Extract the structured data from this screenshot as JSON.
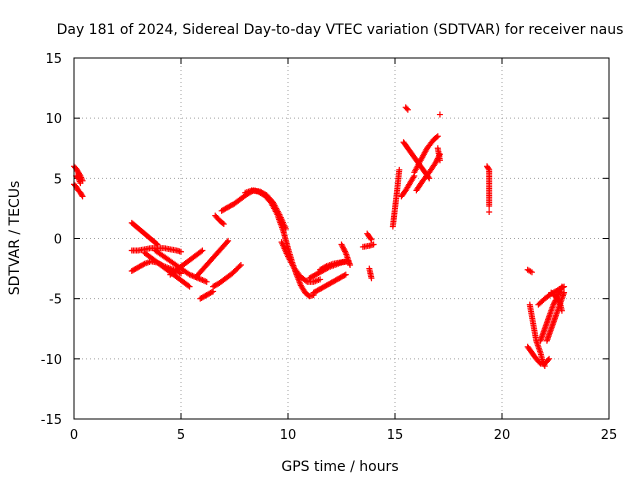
{
  "chart_data": {
    "type": "scatter",
    "title": "Day 181 of 2024, Sidereal Day-to-day VTEC variation (SDTVAR) for receiver naus",
    "xlabel": "GPS time / hours",
    "ylabel": "SDTVAR / TECUs",
    "xlim": [
      0,
      25
    ],
    "ylim": [
      -15,
      15
    ],
    "xticks": [
      0,
      5,
      10,
      15,
      20,
      25
    ],
    "yticks": [
      -15,
      -10,
      -5,
      0,
      5,
      10,
      15
    ],
    "grid": true,
    "marker": "+",
    "color": "#ff0000",
    "segments": [
      {
        "x": [
          0.0,
          0.1,
          0.2,
          0.3,
          0.4
        ],
        "y": [
          6.0,
          5.8,
          5.5,
          5.2,
          4.8
        ]
      },
      {
        "x": [
          0.0,
          0.1,
          0.2,
          0.3,
          0.4
        ],
        "y": [
          4.5,
          4.3,
          4.0,
          3.8,
          3.5
        ]
      },
      {
        "x": [
          0.1,
          0.2,
          0.3
        ],
        "y": [
          5.2,
          5.0,
          4.6
        ]
      },
      {
        "x": [
          2.7,
          2.9,
          3.1,
          3.3,
          3.5,
          3.7,
          3.9
        ],
        "y": [
          1.3,
          1.0,
          0.7,
          0.4,
          0.1,
          -0.2,
          -0.5
        ]
      },
      {
        "x": [
          2.7,
          3.0,
          3.3,
          3.6,
          3.9,
          4.2,
          4.5,
          4.8,
          5.0
        ],
        "y": [
          -1.0,
          -1.0,
          -0.9,
          -0.8,
          -0.8,
          -0.8,
          -0.9,
          -1.0,
          -1.1
        ]
      },
      {
        "x": [
          2.7,
          3.0,
          3.3,
          3.6,
          3.9,
          4.2,
          4.5,
          4.8,
          5.0
        ],
        "y": [
          -2.7,
          -2.4,
          -2.1,
          -1.9,
          -2.0,
          -2.3,
          -2.5,
          -2.7,
          -2.9
        ]
      },
      {
        "x": [
          3.3,
          3.6,
          3.9,
          4.2,
          4.5,
          4.8,
          5.1,
          5.4
        ],
        "y": [
          -1.2,
          -1.6,
          -2.0,
          -2.4,
          -2.8,
          -3.2,
          -3.6,
          -4.0
        ]
      },
      {
        "x": [
          3.8,
          4.2,
          4.6,
          5.0,
          5.4,
          5.8,
          6.2
        ],
        "y": [
          -1.0,
          -1.5,
          -2.0,
          -2.5,
          -3.0,
          -3.3,
          -3.6
        ]
      },
      {
        "x": [
          4.5,
          4.8,
          5.1,
          5.4,
          5.7,
          6.0
        ],
        "y": [
          -3.0,
          -2.6,
          -2.2,
          -1.8,
          -1.4,
          -1.0
        ]
      },
      {
        "x": [
          5.7,
          6.0,
          6.3,
          6.6,
          6.9,
          7.2
        ],
        "y": [
          -3.2,
          -2.6,
          -2.0,
          -1.4,
          -0.8,
          -0.2
        ]
      },
      {
        "x": [
          5.9,
          6.2,
          6.5
        ],
        "y": [
          -5.0,
          -4.7,
          -4.4
        ]
      },
      {
        "x": [
          6.5,
          6.8,
          7.1,
          7.4,
          7.8
        ],
        "y": [
          -4.0,
          -3.7,
          -3.3,
          -2.9,
          -2.2
        ]
      },
      {
        "x": [
          6.9,
          7.2,
          7.5,
          7.8,
          8.1,
          8.4,
          8.7,
          9.0,
          9.3,
          9.6,
          9.9
        ],
        "y": [
          2.3,
          2.6,
          2.9,
          3.3,
          3.7,
          4.0,
          3.9,
          3.6,
          3.0,
          2.0,
          0.8
        ]
      },
      {
        "x": [
          6.6,
          6.8,
          7.0
        ],
        "y": [
          1.9,
          1.5,
          1.2
        ]
      },
      {
        "x": [
          8.0,
          8.3,
          8.6,
          8.9,
          9.2,
          9.5,
          9.8,
          10.0,
          10.2,
          10.4,
          10.6,
          10.8,
          11.0,
          11.2
        ],
        "y": [
          3.8,
          4.0,
          3.9,
          3.6,
          3.0,
          2.0,
          0.5,
          -0.8,
          -2.0,
          -3.0,
          -3.9,
          -4.5,
          -4.8,
          -4.7
        ]
      },
      {
        "x": [
          9.7,
          10.0,
          10.3,
          10.6,
          10.9,
          11.2,
          11.5
        ],
        "y": [
          -0.3,
          -1.5,
          -2.5,
          -3.2,
          -3.6,
          -3.6,
          -3.4
        ]
      },
      {
        "x": [
          11.0,
          11.3,
          11.6,
          11.9,
          12.2,
          12.5,
          12.8
        ],
        "y": [
          -3.3,
          -3.0,
          -2.7,
          -2.4,
          -2.2,
          -2.0,
          -1.9
        ]
      },
      {
        "x": [
          11.2,
          11.5,
          11.8,
          12.1,
          12.4,
          12.7
        ],
        "y": [
          -4.5,
          -4.2,
          -3.9,
          -3.6,
          -3.3,
          -3.0
        ]
      },
      {
        "x": [
          11.5,
          11.8,
          12.1,
          12.4,
          12.7
        ],
        "y": [
          -2.6,
          -2.3,
          -2.1,
          -2.0,
          -1.9
        ]
      },
      {
        "x": [
          12.5,
          12.7,
          12.9
        ],
        "y": [
          -0.5,
          -1.2,
          -2.2
        ]
      },
      {
        "x": [
          13.5,
          13.8,
          14.0
        ],
        "y": [
          -0.7,
          -0.6,
          -0.5
        ]
      },
      {
        "x": [
          13.7,
          13.9
        ],
        "y": [
          0.4,
          -0.1
        ]
      },
      {
        "x": [
          13.8,
          13.9
        ],
        "y": [
          -2.5,
          -3.3
        ]
      },
      {
        "x": [
          14.9,
          15.0,
          15.1,
          15.2
        ],
        "y": [
          1.0,
          2.5,
          4.0,
          5.7
        ]
      },
      {
        "x": [
          15.3,
          15.5,
          15.7,
          15.9
        ],
        "y": [
          3.5,
          4.0,
          4.6,
          5.2
        ]
      },
      {
        "x": [
          15.4,
          15.6,
          15.8,
          16.0,
          16.2,
          16.4,
          16.6
        ],
        "y": [
          8.0,
          7.5,
          7.0,
          6.5,
          6.0,
          5.5,
          5.0
        ]
      },
      {
        "x": [
          15.9,
          16.2,
          16.5,
          16.8,
          17.0
        ],
        "y": [
          5.5,
          6.5,
          7.5,
          8.2,
          8.5
        ]
      },
      {
        "x": [
          16.0,
          16.3,
          16.6,
          16.9,
          17.1
        ],
        "y": [
          4.0,
          4.8,
          5.5,
          6.3,
          7.0
        ]
      },
      {
        "x": [
          15.5,
          15.6
        ],
        "y": [
          10.9,
          10.7
        ]
      },
      {
        "x": [
          17.1
        ],
        "y": [
          10.3
        ]
      },
      {
        "x": [
          17.0,
          17.1
        ],
        "y": [
          7.5,
          6.5
        ]
      },
      {
        "x": [
          19.3,
          19.4,
          19.4,
          19.4
        ],
        "y": [
          6.0,
          5.7,
          4.3,
          2.7
        ]
      },
      {
        "x": [
          19.4
        ],
        "y": [
          2.2
        ]
      },
      {
        "x": [
          21.2,
          21.4
        ],
        "y": [
          -2.6,
          -2.8
        ]
      },
      {
        "x": [
          21.3,
          21.4,
          21.5,
          21.6,
          21.8,
          21.9,
          22.0
        ],
        "y": [
          -5.5,
          -6.5,
          -7.5,
          -8.5,
          -9.5,
          -10.2,
          -10.6
        ]
      },
      {
        "x": [
          21.2,
          21.4,
          21.6,
          21.8,
          22.0,
          22.2
        ],
        "y": [
          -9.0,
          -9.5,
          -10.0,
          -10.4,
          -10.4,
          -10.0
        ]
      },
      {
        "x": [
          21.8,
          22.0,
          22.2,
          22.4,
          22.6,
          22.8
        ],
        "y": [
          -8.5,
          -7.5,
          -6.5,
          -5.5,
          -4.8,
          -4.0
        ]
      },
      {
        "x": [
          21.7,
          22.0,
          22.3,
          22.6,
          22.9
        ],
        "y": [
          -5.5,
          -5.0,
          -4.6,
          -4.3,
          -4.0
        ]
      },
      {
        "x": [
          22.1,
          22.3,
          22.5,
          22.7,
          22.9
        ],
        "y": [
          -8.5,
          -7.5,
          -6.5,
          -5.5,
          -4.5
        ]
      },
      {
        "x": [
          22.3,
          22.5,
          22.7,
          22.8
        ],
        "y": [
          -4.5,
          -4.8,
          -5.3,
          -6.0
        ]
      }
    ]
  }
}
